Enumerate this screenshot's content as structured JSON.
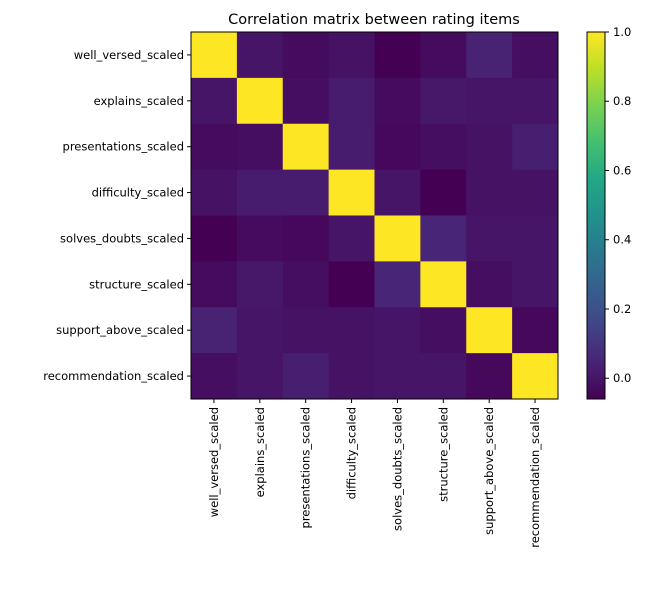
{
  "chart_data": {
    "type": "heatmap",
    "title": "Correlation matrix between rating items",
    "rows": [
      "well_versed_scaled",
      "explains_scaled",
      "presentations_scaled",
      "difficulty_scaled",
      "solves_doubts_scaled",
      "structure_scaled",
      "support_above_scaled",
      "recommendation_scaled"
    ],
    "columns": [
      "well_versed_scaled",
      "explains_scaled",
      "presentations_scaled",
      "difficulty_scaled",
      "solves_doubts_scaled",
      "structure_scaled",
      "support_above_scaled",
      "recommendation_scaled"
    ],
    "values": [
      [
        1.0,
        0.0,
        -0.03,
        -0.01,
        -0.06,
        -0.03,
        0.04,
        -0.02
      ],
      [
        0.0,
        1.0,
        -0.02,
        0.02,
        -0.03,
        0.01,
        0.0,
        0.0
      ],
      [
        -0.03,
        -0.02,
        1.0,
        0.02,
        -0.04,
        -0.02,
        -0.01,
        0.03
      ],
      [
        -0.01,
        0.02,
        0.02,
        1.0,
        0.0,
        -0.06,
        -0.01,
        -0.01
      ],
      [
        -0.06,
        -0.03,
        -0.04,
        0.0,
        1.0,
        0.05,
        0.0,
        0.0
      ],
      [
        -0.03,
        0.01,
        -0.02,
        -0.06,
        0.05,
        1.0,
        -0.02,
        0.0
      ],
      [
        0.04,
        0.0,
        -0.01,
        -0.01,
        0.0,
        -0.02,
        1.0,
        -0.04
      ],
      [
        -0.02,
        0.0,
        0.03,
        -0.01,
        0.0,
        0.0,
        -0.04,
        1.0
      ]
    ],
    "colorbar": {
      "colormap": "viridis",
      "vmin": -0.06,
      "vmax": 1.0,
      "ticks": [
        "0.0",
        "0.2",
        "0.4",
        "0.6",
        "0.8",
        "1.0"
      ],
      "tick_values": [
        0.0,
        0.2,
        0.4,
        0.6,
        0.8,
        1.0
      ]
    },
    "xlabel": "",
    "ylabel": "",
    "grid": false,
    "x_tick_rotation": "vertical"
  }
}
